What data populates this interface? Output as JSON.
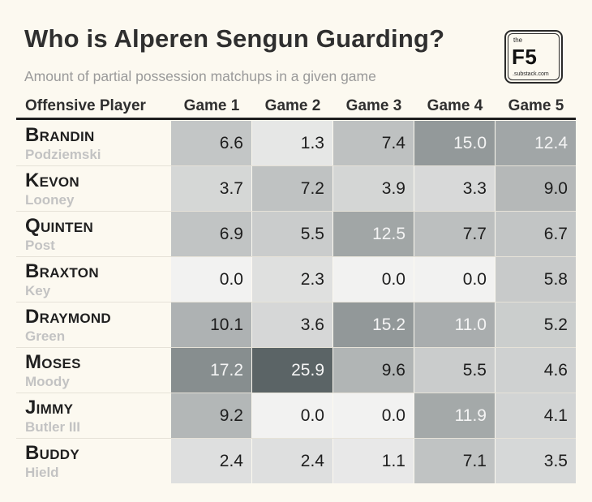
{
  "title": "Who is Alperen Sengun Guarding?",
  "subtitle": "Amount of partial possession matchups in a given game",
  "logo": {
    "the": "the",
    "name": "F5",
    "domain": ".substack.com"
  },
  "header": {
    "player": "Offensive Player",
    "games": [
      "Game 1",
      "Game 2",
      "Game 3",
      "Game 4",
      "Game 5"
    ]
  },
  "rows": [
    {
      "first": "Brandin",
      "last": "Podziemski"
    },
    {
      "first": "Kevon",
      "last": "Looney"
    },
    {
      "first": "Quinten",
      "last": "Post"
    },
    {
      "first": "Braxton",
      "last": "Key"
    },
    {
      "first": "Draymond",
      "last": "Green"
    },
    {
      "first": "Moses",
      "last": "Moody"
    },
    {
      "first": "Jimmy",
      "last": "Butler III"
    },
    {
      "first": "Buddy",
      "last": "Hield"
    }
  ],
  "chart_data": {
    "type": "heatmap",
    "title": "Who is Alperen Sengun Guarding?",
    "subtitle": "Amount of partial possession matchups in a given game",
    "row_header": "Offensive Player",
    "columns": [
      "Game 1",
      "Game 2",
      "Game 3",
      "Game 4",
      "Game 5"
    ],
    "rows": [
      "Brandin Podziemski",
      "Kevon Looney",
      "Quinten Post",
      "Braxton Key",
      "Draymond Green",
      "Moses Moody",
      "Jimmy Butler III",
      "Buddy Hield"
    ],
    "values": [
      [
        6.6,
        1.3,
        7.4,
        15.0,
        12.4
      ],
      [
        3.7,
        7.2,
        3.9,
        3.3,
        9.0
      ],
      [
        6.9,
        5.5,
        12.5,
        7.7,
        6.7
      ],
      [
        0.0,
        2.3,
        0.0,
        0.0,
        5.8
      ],
      [
        10.1,
        3.6,
        15.2,
        11.0,
        5.2
      ],
      [
        17.2,
        25.9,
        9.6,
        5.5,
        4.6
      ],
      [
        9.2,
        0.0,
        0.0,
        11.9,
        4.1
      ],
      [
        2.4,
        2.4,
        1.1,
        7.1,
        3.5
      ]
    ],
    "color_scale": {
      "low": "#f2f2f1",
      "high": "#5b6466"
    }
  }
}
